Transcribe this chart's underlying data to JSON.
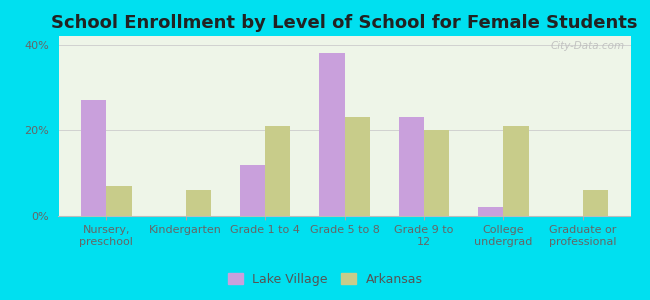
{
  "title": "School Enrollment by Level of School for Female Students",
  "categories": [
    "Nursery,\npreschool",
    "Kindergarten",
    "Grade 1 to 4",
    "Grade 5 to 8",
    "Grade 9 to\n12",
    "College\nundergrad",
    "Graduate or\nprofessional"
  ],
  "lake_village": [
    27,
    0,
    12,
    38,
    23,
    2,
    0
  ],
  "arkansas": [
    7,
    6,
    21,
    23,
    20,
    21,
    6
  ],
  "lake_village_color": "#c9a0dc",
  "arkansas_color": "#c8cc8a",
  "bar_width": 0.32,
  "ylim": [
    0,
    42
  ],
  "yticks": [
    0,
    20,
    40
  ],
  "ytick_labels": [
    "0%",
    "20%",
    "40%"
  ],
  "legend_labels": [
    "Lake Village",
    "Arkansas"
  ],
  "background_color": "#00e0f0",
  "plot_bg_color": "#eef5e8",
  "title_fontsize": 13,
  "tick_fontsize": 8,
  "watermark": "City-Data.com"
}
